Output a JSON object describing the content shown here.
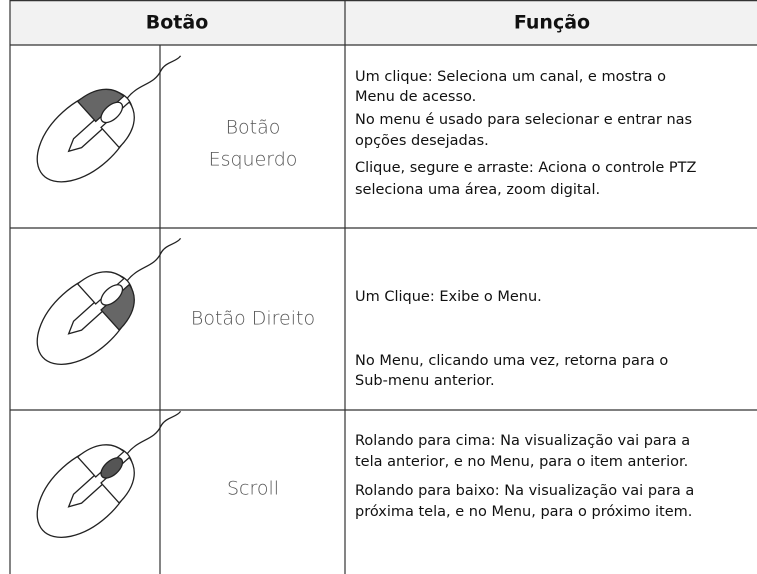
{
  "header": {
    "button": "Botão",
    "function": "Função"
  },
  "rows": [
    {
      "label": [
        "Botão",
        "Esquerdo"
      ],
      "function": [
        "Um clique: Seleciona um canal, e mostra o",
        "Menu de acesso.",
        "No menu é usado para selecionar e entrar nas",
        "opções desejadas.",
        "Clique, segure e arraste: Aciona o controle PTZ",
        "seleciona uma área, zoom digital."
      ]
    },
    {
      "label": [
        "Botão Direito"
      ],
      "function": [
        "Um Clique: Exibe o Menu.",
        "No Menu, clicando uma vez, retorna para o",
        "Sub-menu anterior."
      ]
    },
    {
      "label": [
        "Scroll"
      ],
      "function": [
        "Rolando para cima: Na visualização vai para a",
        "tela anterior, e no Menu, para o item anterior.",
        "Rolando para baixo: Na visualização vai para a",
        "próxima tela, e no Menu, para o próximo item."
      ]
    }
  ]
}
